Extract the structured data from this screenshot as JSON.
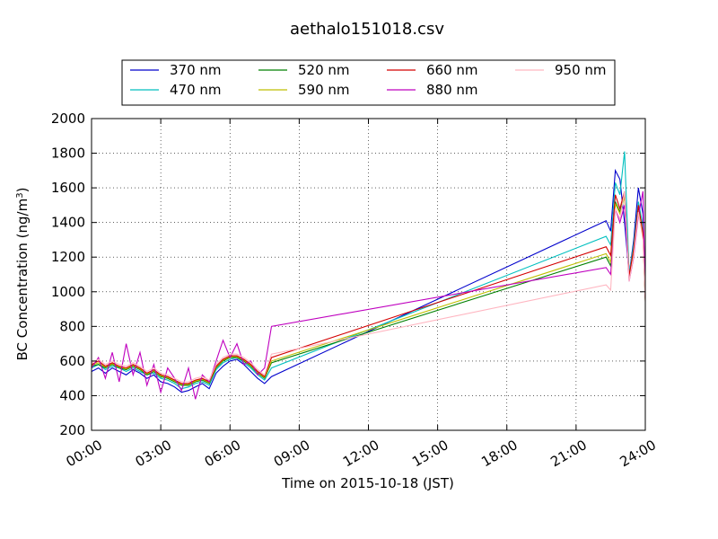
{
  "chart_data": {
    "type": "line",
    "title": "aethalo151018.csv",
    "xlabel": "Time on 2015-10-18 (JST)",
    "ylabel": "BC Concentration (ng/m³)",
    "ylabel_main": "BC Concentration (ng/m",
    "ylabel_sup": "3",
    "ylabel_end": ")",
    "x_unit": "hour",
    "xlim": [
      0,
      24
    ],
    "ylim": [
      200,
      2000
    ],
    "x_ticks": [
      0,
      3,
      6,
      9,
      12,
      15,
      18,
      21,
      24
    ],
    "x_tick_labels": [
      "00:00",
      "03:00",
      "06:00",
      "09:00",
      "12:00",
      "15:00",
      "18:00",
      "21:00",
      "24:00"
    ],
    "y_ticks": [
      200,
      400,
      600,
      800,
      1000,
      1200,
      1400,
      1600,
      1800,
      2000
    ],
    "y_tick_labels": [
      "200",
      "400",
      "600",
      "800",
      "1000",
      "1200",
      "1400",
      "1600",
      "1800",
      "2000"
    ],
    "grid": true,
    "legend_position": "top",
    "series": [
      {
        "name": "370 nm",
        "color": "#0000cc",
        "points": [
          [
            0,
            540
          ],
          [
            0.3,
            560
          ],
          [
            0.6,
            530
          ],
          [
            0.9,
            560
          ],
          [
            1.2,
            540
          ],
          [
            1.5,
            520
          ],
          [
            1.8,
            550
          ],
          [
            2.1,
            530
          ],
          [
            2.4,
            500
          ],
          [
            2.7,
            520
          ],
          [
            3.0,
            480
          ],
          [
            3.3,
            470
          ],
          [
            3.6,
            450
          ],
          [
            3.9,
            420
          ],
          [
            4.2,
            430
          ],
          [
            4.5,
            450
          ],
          [
            4.8,
            470
          ],
          [
            5.1,
            440
          ],
          [
            5.4,
            530
          ],
          [
            5.7,
            570
          ],
          [
            6.0,
            600
          ],
          [
            6.3,
            610
          ],
          [
            6.6,
            580
          ],
          [
            6.9,
            540
          ],
          [
            7.2,
            500
          ],
          [
            7.5,
            470
          ],
          [
            7.8,
            510
          ],
          [
            22.3,
            1410
          ],
          [
            22.5,
            1350
          ],
          [
            22.7,
            1700
          ],
          [
            22.9,
            1650
          ],
          [
            23.1,
            1400
          ],
          [
            23.3,
            1100
          ],
          [
            23.5,
            1300
          ],
          [
            23.7,
            1600
          ],
          [
            23.9,
            1450
          ],
          [
            24.0,
            1000
          ],
          [
            24.1,
            1100
          ]
        ]
      },
      {
        "name": "470 nm",
        "color": "#00bfbf",
        "points": [
          [
            0,
            560
          ],
          [
            0.3,
            580
          ],
          [
            0.6,
            550
          ],
          [
            0.9,
            570
          ],
          [
            1.2,
            560
          ],
          [
            1.5,
            540
          ],
          [
            1.8,
            560
          ],
          [
            2.1,
            540
          ],
          [
            2.4,
            520
          ],
          [
            2.7,
            530
          ],
          [
            3.0,
            500
          ],
          [
            3.3,
            490
          ],
          [
            3.6,
            470
          ],
          [
            3.9,
            440
          ],
          [
            4.2,
            450
          ],
          [
            4.5,
            470
          ],
          [
            4.8,
            480
          ],
          [
            5.1,
            460
          ],
          [
            5.4,
            550
          ],
          [
            5.7,
            590
          ],
          [
            6.0,
            610
          ],
          [
            6.3,
            620
          ],
          [
            6.6,
            590
          ],
          [
            6.9,
            560
          ],
          [
            7.2,
            520
          ],
          [
            7.5,
            490
          ],
          [
            7.8,
            560
          ],
          [
            22.3,
            1320
          ],
          [
            22.5,
            1270
          ],
          [
            22.7,
            1630
          ],
          [
            22.9,
            1560
          ],
          [
            23.1,
            1810
          ],
          [
            23.3,
            1100
          ],
          [
            23.5,
            1280
          ],
          [
            23.7,
            1520
          ],
          [
            23.9,
            1380
          ],
          [
            24.0,
            960
          ],
          [
            24.1,
            1050
          ]
        ]
      },
      {
        "name": "520 nm",
        "color": "#008000",
        "points": [
          [
            0,
            570
          ],
          [
            0.3,
            580
          ],
          [
            0.6,
            560
          ],
          [
            0.9,
            580
          ],
          [
            1.2,
            560
          ],
          [
            1.5,
            550
          ],
          [
            1.8,
            570
          ],
          [
            2.1,
            550
          ],
          [
            2.4,
            520
          ],
          [
            2.7,
            540
          ],
          [
            3.0,
            510
          ],
          [
            3.3,
            500
          ],
          [
            3.6,
            480
          ],
          [
            3.9,
            460
          ],
          [
            4.2,
            460
          ],
          [
            4.5,
            480
          ],
          [
            4.8,
            490
          ],
          [
            5.1,
            470
          ],
          [
            5.4,
            560
          ],
          [
            5.7,
            600
          ],
          [
            6.0,
            620
          ],
          [
            6.3,
            620
          ],
          [
            6.6,
            600
          ],
          [
            6.9,
            570
          ],
          [
            7.2,
            530
          ],
          [
            7.5,
            500
          ],
          [
            7.8,
            590
          ],
          [
            22.3,
            1200
          ],
          [
            22.5,
            1150
          ],
          [
            22.7,
            1520
          ],
          [
            22.9,
            1460
          ],
          [
            23.1,
            1560
          ],
          [
            23.3,
            1080
          ],
          [
            23.5,
            1240
          ],
          [
            23.7,
            1480
          ],
          [
            23.9,
            1330
          ],
          [
            24.0,
            950
          ],
          [
            24.1,
            1020
          ]
        ]
      },
      {
        "name": "590 nm",
        "color": "#bfbf00",
        "points": [
          [
            0,
            575
          ],
          [
            0.3,
            590
          ],
          [
            0.6,
            565
          ],
          [
            0.9,
            585
          ],
          [
            1.2,
            565
          ],
          [
            1.5,
            555
          ],
          [
            1.8,
            575
          ],
          [
            2.1,
            555
          ],
          [
            2.4,
            525
          ],
          [
            2.7,
            545
          ],
          [
            3.0,
            515
          ],
          [
            3.3,
            505
          ],
          [
            3.6,
            485
          ],
          [
            3.9,
            465
          ],
          [
            4.2,
            465
          ],
          [
            4.5,
            485
          ],
          [
            4.8,
            495
          ],
          [
            5.1,
            475
          ],
          [
            5.4,
            565
          ],
          [
            5.7,
            605
          ],
          [
            6.0,
            625
          ],
          [
            6.3,
            625
          ],
          [
            6.6,
            605
          ],
          [
            6.9,
            575
          ],
          [
            7.2,
            535
          ],
          [
            7.5,
            505
          ],
          [
            7.8,
            600
          ],
          [
            22.3,
            1220
          ],
          [
            22.5,
            1170
          ],
          [
            22.7,
            1510
          ],
          [
            22.9,
            1450
          ],
          [
            23.1,
            1550
          ],
          [
            23.3,
            1080
          ],
          [
            23.5,
            1230
          ],
          [
            23.7,
            1470
          ],
          [
            23.9,
            1320
          ],
          [
            24.0,
            950
          ],
          [
            24.1,
            1010
          ]
        ]
      },
      {
        "name": "660 nm",
        "color": "#d40000",
        "points": [
          [
            0,
            580
          ],
          [
            0.3,
            600
          ],
          [
            0.6,
            570
          ],
          [
            0.9,
            590
          ],
          [
            1.2,
            570
          ],
          [
            1.5,
            560
          ],
          [
            1.8,
            580
          ],
          [
            2.1,
            560
          ],
          [
            2.4,
            530
          ],
          [
            2.7,
            550
          ],
          [
            3.0,
            520
          ],
          [
            3.3,
            510
          ],
          [
            3.6,
            490
          ],
          [
            3.9,
            470
          ],
          [
            4.2,
            470
          ],
          [
            4.5,
            490
          ],
          [
            4.8,
            500
          ],
          [
            5.1,
            480
          ],
          [
            5.4,
            570
          ],
          [
            5.7,
            610
          ],
          [
            6.0,
            630
          ],
          [
            6.3,
            630
          ],
          [
            6.6,
            610
          ],
          [
            6.9,
            580
          ],
          [
            7.2,
            540
          ],
          [
            7.5,
            510
          ],
          [
            7.8,
            620
          ],
          [
            22.3,
            1260
          ],
          [
            22.5,
            1210
          ],
          [
            22.7,
            1560
          ],
          [
            22.9,
            1480
          ],
          [
            23.1,
            1580
          ],
          [
            23.3,
            1090
          ],
          [
            23.5,
            1250
          ],
          [
            23.7,
            1500
          ],
          [
            23.9,
            1340
          ],
          [
            24.0,
            960
          ],
          [
            24.1,
            1020
          ]
        ]
      },
      {
        "name": "880 nm",
        "color": "#bf00bf",
        "points": [
          [
            0,
            560
          ],
          [
            0.3,
            620
          ],
          [
            0.6,
            500
          ],
          [
            0.9,
            650
          ],
          [
            1.2,
            480
          ],
          [
            1.5,
            700
          ],
          [
            1.8,
            520
          ],
          [
            2.1,
            650
          ],
          [
            2.4,
            460
          ],
          [
            2.7,
            580
          ],
          [
            3.0,
            420
          ],
          [
            3.3,
            560
          ],
          [
            3.6,
            500
          ],
          [
            3.9,
            430
          ],
          [
            4.2,
            560
          ],
          [
            4.5,
            380
          ],
          [
            4.8,
            520
          ],
          [
            5.1,
            480
          ],
          [
            5.4,
            600
          ],
          [
            5.7,
            720
          ],
          [
            6.0,
            620
          ],
          [
            6.3,
            700
          ],
          [
            6.6,
            580
          ],
          [
            6.9,
            600
          ],
          [
            7.2,
            520
          ],
          [
            7.5,
            560
          ],
          [
            7.8,
            800
          ],
          [
            22.3,
            1140
          ],
          [
            22.5,
            1100
          ],
          [
            22.7,
            1480
          ],
          [
            22.9,
            1400
          ],
          [
            23.1,
            1500
          ],
          [
            23.3,
            1060
          ],
          [
            23.5,
            1200
          ],
          [
            23.7,
            1440
          ],
          [
            23.9,
            1580
          ],
          [
            24.0,
            960
          ],
          [
            24.1,
            1000
          ]
        ]
      },
      {
        "name": "950 nm",
        "color": "#ffb6c1",
        "points": [
          [
            0,
            590
          ],
          [
            0.3,
            610
          ],
          [
            0.6,
            580
          ],
          [
            0.9,
            600
          ],
          [
            1.2,
            580
          ],
          [
            1.5,
            570
          ],
          [
            1.8,
            590
          ],
          [
            2.1,
            570
          ],
          [
            2.4,
            540
          ],
          [
            2.7,
            560
          ],
          [
            3.0,
            530
          ],
          [
            3.3,
            520
          ],
          [
            3.6,
            500
          ],
          [
            3.9,
            480
          ],
          [
            4.2,
            480
          ],
          [
            4.5,
            500
          ],
          [
            4.8,
            510
          ],
          [
            5.1,
            490
          ],
          [
            5.4,
            580
          ],
          [
            5.7,
            620
          ],
          [
            6.0,
            640
          ],
          [
            6.3,
            640
          ],
          [
            6.6,
            620
          ],
          [
            6.9,
            590
          ],
          [
            7.2,
            550
          ],
          [
            7.5,
            520
          ],
          [
            7.8,
            640
          ],
          [
            22.3,
            1040
          ],
          [
            22.5,
            1010
          ],
          [
            22.7,
            1480
          ],
          [
            22.9,
            1420
          ],
          [
            23.1,
            1580
          ],
          [
            23.3,
            1060
          ],
          [
            23.5,
            1210
          ],
          [
            23.7,
            1460
          ],
          [
            23.9,
            1300
          ],
          [
            24.0,
            940
          ],
          [
            24.1,
            990
          ]
        ]
      }
    ]
  }
}
